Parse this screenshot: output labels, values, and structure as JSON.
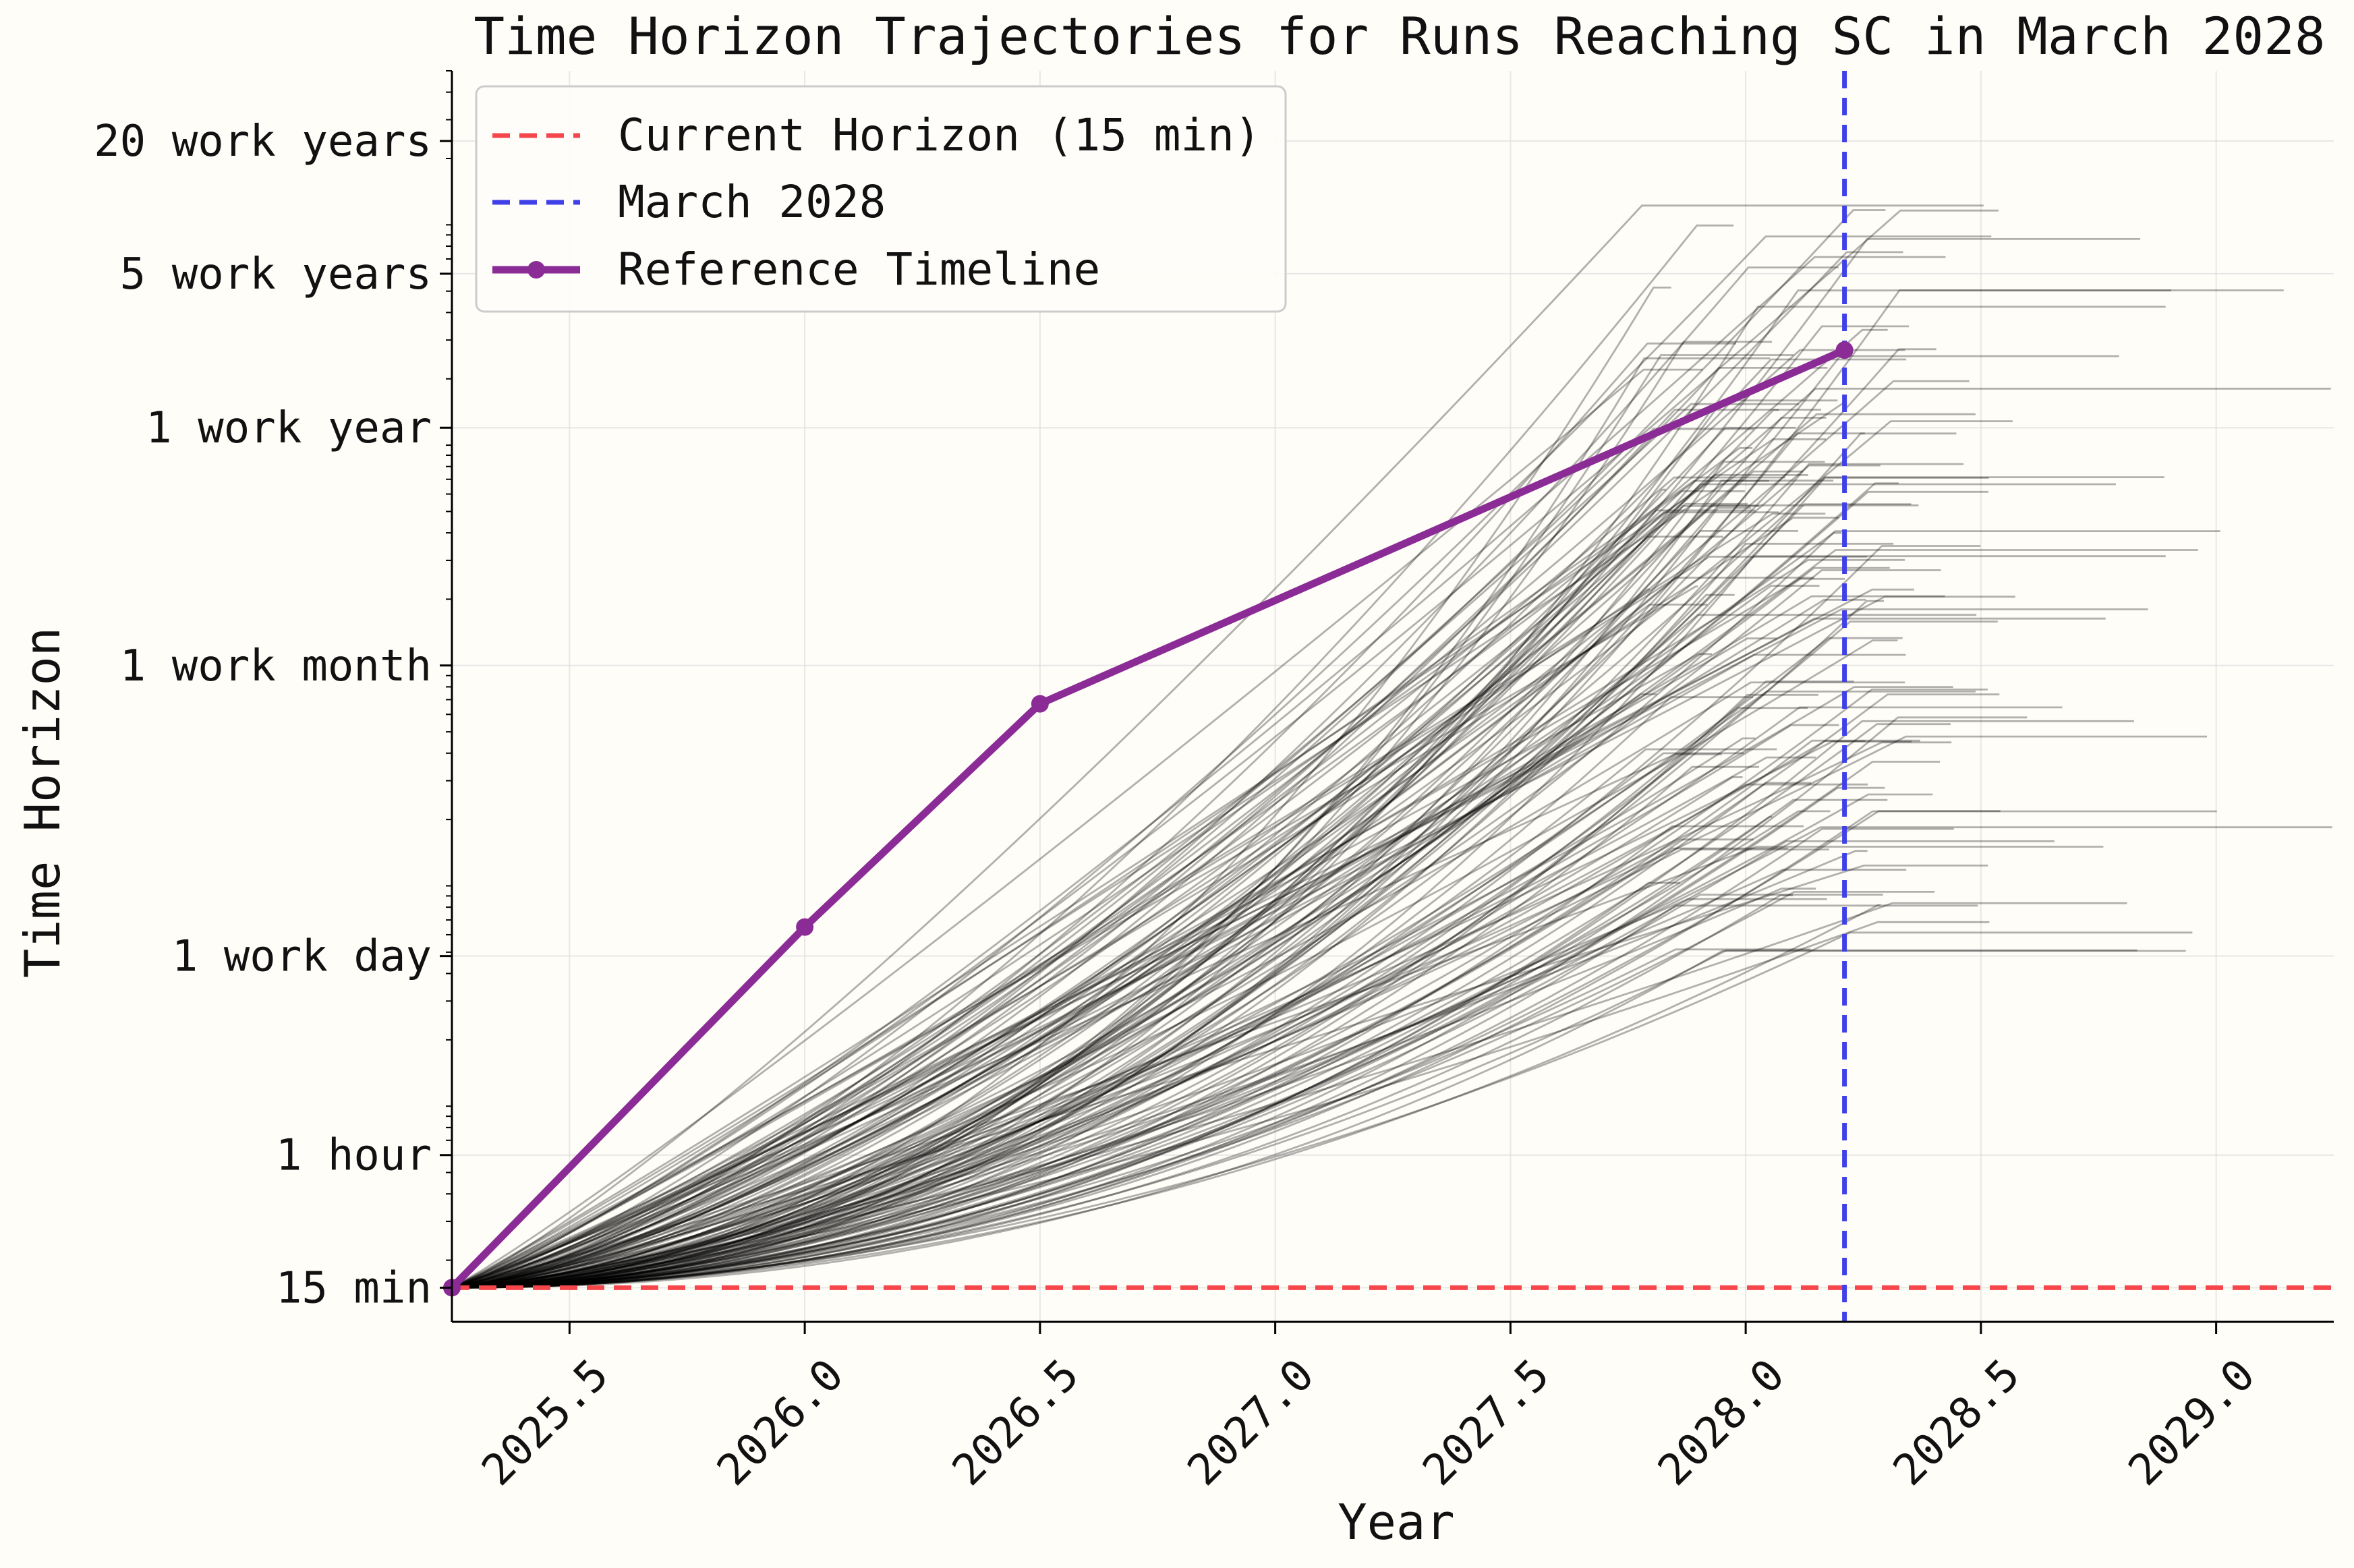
{
  "chart_data": {
    "type": "line",
    "title": "Time Horizon Trajectories for Runs Reaching SC in March 2028",
    "xlabel": "Year",
    "ylabel": "Time Horizon",
    "y_scale": "log",
    "y_unit": "minutes",
    "xlim": [
      2025.25,
      2029.25
    ],
    "ylim_minutes": [
      10.5,
      5000000
    ],
    "x_ticks": [
      2025.5,
      2026.0,
      2026.5,
      2027.0,
      2027.5,
      2028.0,
      2028.5,
      2029.0
    ],
    "x_tick_labels": [
      "2025.5",
      "2026.0",
      "2026.5",
      "2027.0",
      "2027.5",
      "2028.0",
      "2028.5",
      "2029.0"
    ],
    "y_ticks": [
      {
        "minutes": 15,
        "label": "15 min"
      },
      {
        "minutes": 60,
        "label": "1 hour"
      },
      {
        "minutes": 480,
        "label": "1 work day"
      },
      {
        "minutes": 10000,
        "label": "1 work month"
      },
      {
        "minutes": 120000,
        "label": "1 work year"
      },
      {
        "minutes": 600000,
        "label": "5 work years"
      },
      {
        "minutes": 2400000,
        "label": "20 work years"
      }
    ],
    "grid": true,
    "legend_position": "top-left",
    "legend": [
      {
        "label": "Current Horizon (15 min)",
        "color": "#f5474b",
        "style": "dashed"
      },
      {
        "label": "March 2028",
        "color": "#4040e8",
        "style": "dashed"
      },
      {
        "label": "Reference Timeline",
        "color": "#8b2b96",
        "style": "solid-markers"
      }
    ],
    "current_horizon_minutes": 15,
    "march_2028_x": 2028.21,
    "reference_timeline": {
      "name": "Reference Timeline",
      "color": "#8b2b96",
      "x": [
        2025.25,
        2026.0,
        2026.5,
        2028.21
      ],
      "y": [
        15,
        650,
        6700,
        270000
      ]
    },
    "trajectories": {
      "count": 160,
      "color": "#000000",
      "opacity": 0.3,
      "start": [
        2025.25,
        15
      ],
      "end_x_range": [
        2027.3,
        2028.35
      ],
      "end_y_range_minutes": [
        100,
        2500000
      ],
      "plateau_until_range": [
        2027.9,
        2029.25
      ],
      "example_series": [
        {
          "x": [
            2025.25,
            2026.0,
            2027.0,
            2027.8,
            2028.21,
            2028.9
          ],
          "y": [
            15,
            130,
            900,
            5000,
            10000,
            10000
          ]
        },
        {
          "x": [
            2025.25,
            2026.0,
            2027.0,
            2027.8,
            2028.21,
            2028.5
          ],
          "y": [
            15,
            200,
            2500,
            20000,
            80000,
            80000
          ]
        },
        {
          "x": [
            2025.25,
            2026.0,
            2027.0,
            2027.4,
            2028.4
          ],
          "y": [
            15,
            45,
            90,
            110,
            110
          ]
        },
        {
          "x": [
            2025.25,
            2026.0,
            2026.9,
            2027.8,
            2028.2,
            2028.3
          ],
          "y": [
            15,
            800,
            20000,
            400000,
            2000000,
            2000000
          ]
        }
      ]
    }
  }
}
